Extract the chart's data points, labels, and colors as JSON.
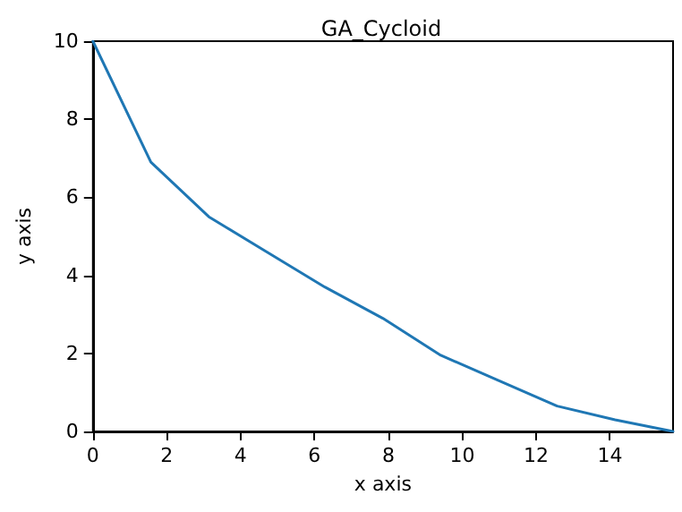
{
  "chart_data": {
    "type": "line",
    "title": "GA_Cycloid",
    "xlabel": "x axis",
    "ylabel": "y axis",
    "x": [
      0,
      1.57,
      3.14,
      4.71,
      6.28,
      7.85,
      9.42,
      11.0,
      12.57,
      14.14,
      15.71
    ],
    "series": [
      {
        "color": "#1f77b4",
        "values": [
          10,
          6.9,
          5.5,
          4.6,
          3.7,
          2.9,
          1.95,
          1.3,
          0.65,
          0.3,
          0
        ]
      }
    ],
    "xlim": [
      0,
      15.71
    ],
    "xticks": [
      0,
      2,
      4,
      6,
      8,
      10,
      12,
      14
    ],
    "ylim": [
      0,
      10
    ],
    "yticks": [
      0,
      2,
      4,
      6,
      8,
      10
    ],
    "grid": false,
    "marker": "none",
    "line_style": "solid"
  }
}
